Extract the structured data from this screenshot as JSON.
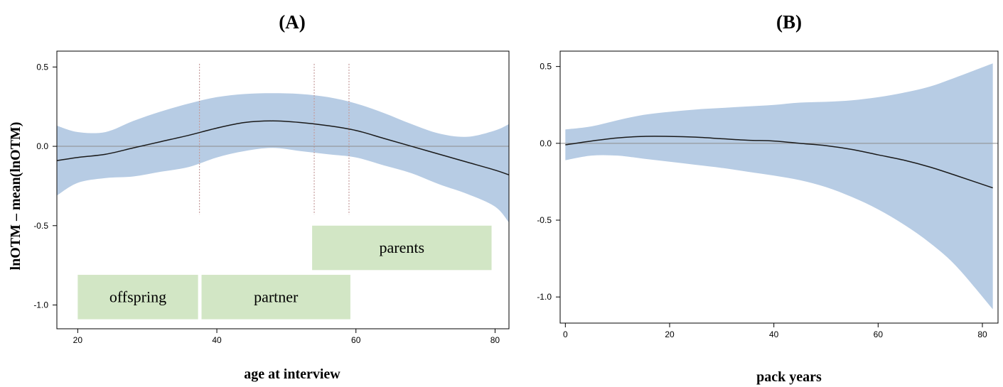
{
  "chart_data": [
    {
      "type": "line",
      "panel_label": "(A)",
      "xlabel": "age at interview",
      "ylabel": "lnOTM – mean(lnOTM)",
      "xlim": [
        17,
        82
      ],
      "ylim": [
        -1.15,
        0.6
      ],
      "xticks": [
        20,
        40,
        60,
        80
      ],
      "yticks": [
        0.5,
        0.0,
        -0.5,
        -1.0
      ],
      "ytick_labels": [
        "0.5",
        "0.0",
        "-0.5",
        "-1.0"
      ],
      "reference_line": 0,
      "vlines": [
        37.5,
        54,
        59
      ],
      "colors": {
        "band": "#b7cce4",
        "line": "#1a1a1a",
        "ref": "#8c8c8c",
        "box": "#d2e6c5",
        "vline": "#c49a9a"
      },
      "series": [
        {
          "x": [
            17,
            20,
            24,
            28,
            32,
            36,
            40,
            44,
            48,
            52,
            56,
            60,
            64,
            68,
            72,
            76,
            80,
            82
          ],
          "y": [
            -0.09,
            -0.07,
            -0.05,
            -0.01,
            0.03,
            0.07,
            0.115,
            0.15,
            0.16,
            0.15,
            0.13,
            0.1,
            0.05,
            0.0,
            -0.05,
            -0.1,
            -0.15,
            -0.18
          ],
          "lower": [
            -0.31,
            -0.23,
            -0.2,
            -0.19,
            -0.16,
            -0.13,
            -0.07,
            -0.03,
            -0.01,
            -0.03,
            -0.05,
            -0.07,
            -0.12,
            -0.17,
            -0.24,
            -0.3,
            -0.38,
            -0.48
          ],
          "upper": [
            0.13,
            0.09,
            0.09,
            0.16,
            0.22,
            0.27,
            0.31,
            0.33,
            0.335,
            0.33,
            0.31,
            0.27,
            0.21,
            0.14,
            0.08,
            0.06,
            0.1,
            0.14
          ]
        }
      ],
      "annotations": [
        {
          "text": "offspring",
          "x0": 20,
          "x1": 37.3,
          "y0": -0.81,
          "y1": -1.09
        },
        {
          "text": "partner",
          "x0": 37.8,
          "x1": 59.2,
          "y0": -0.81,
          "y1": -1.09
        },
        {
          "text": "parents",
          "x0": 53.7,
          "x1": 79.5,
          "y0": -0.5,
          "y1": -0.78
        }
      ]
    },
    {
      "type": "line",
      "panel_label": "(B)",
      "xlabel": "pack years",
      "ylabel": "",
      "xlim": [
        -1,
        83
      ],
      "ylim": [
        -1.17,
        0.6
      ],
      "xticks": [
        0,
        20,
        40,
        60,
        80
      ],
      "yticks": [
        0.5,
        0.0,
        -0.5,
        -1.0
      ],
      "ytick_labels": [
        "0.5",
        "0.0",
        "-0.5",
        "-1.0"
      ],
      "reference_line": 0,
      "colors": {
        "band": "#b7cce4",
        "line": "#1a1a1a",
        "ref": "#8c8c8c"
      },
      "series": [
        {
          "x": [
            0,
            5,
            10,
            15,
            20,
            25,
            30,
            35,
            40,
            45,
            50,
            55,
            60,
            65,
            70,
            75,
            82
          ],
          "y": [
            -0.01,
            0.015,
            0.035,
            0.045,
            0.045,
            0.04,
            0.03,
            0.02,
            0.015,
            0.0,
            -0.015,
            -0.04,
            -0.075,
            -0.11,
            -0.155,
            -0.21,
            -0.29
          ],
          "lower": [
            -0.11,
            -0.08,
            -0.08,
            -0.1,
            -0.12,
            -0.14,
            -0.16,
            -0.185,
            -0.21,
            -0.24,
            -0.285,
            -0.35,
            -0.43,
            -0.53,
            -0.65,
            -0.8,
            -1.08
          ],
          "upper": [
            0.09,
            0.11,
            0.15,
            0.185,
            0.205,
            0.22,
            0.23,
            0.24,
            0.25,
            0.265,
            0.27,
            0.28,
            0.3,
            0.33,
            0.37,
            0.43,
            0.52
          ]
        }
      ]
    }
  ]
}
